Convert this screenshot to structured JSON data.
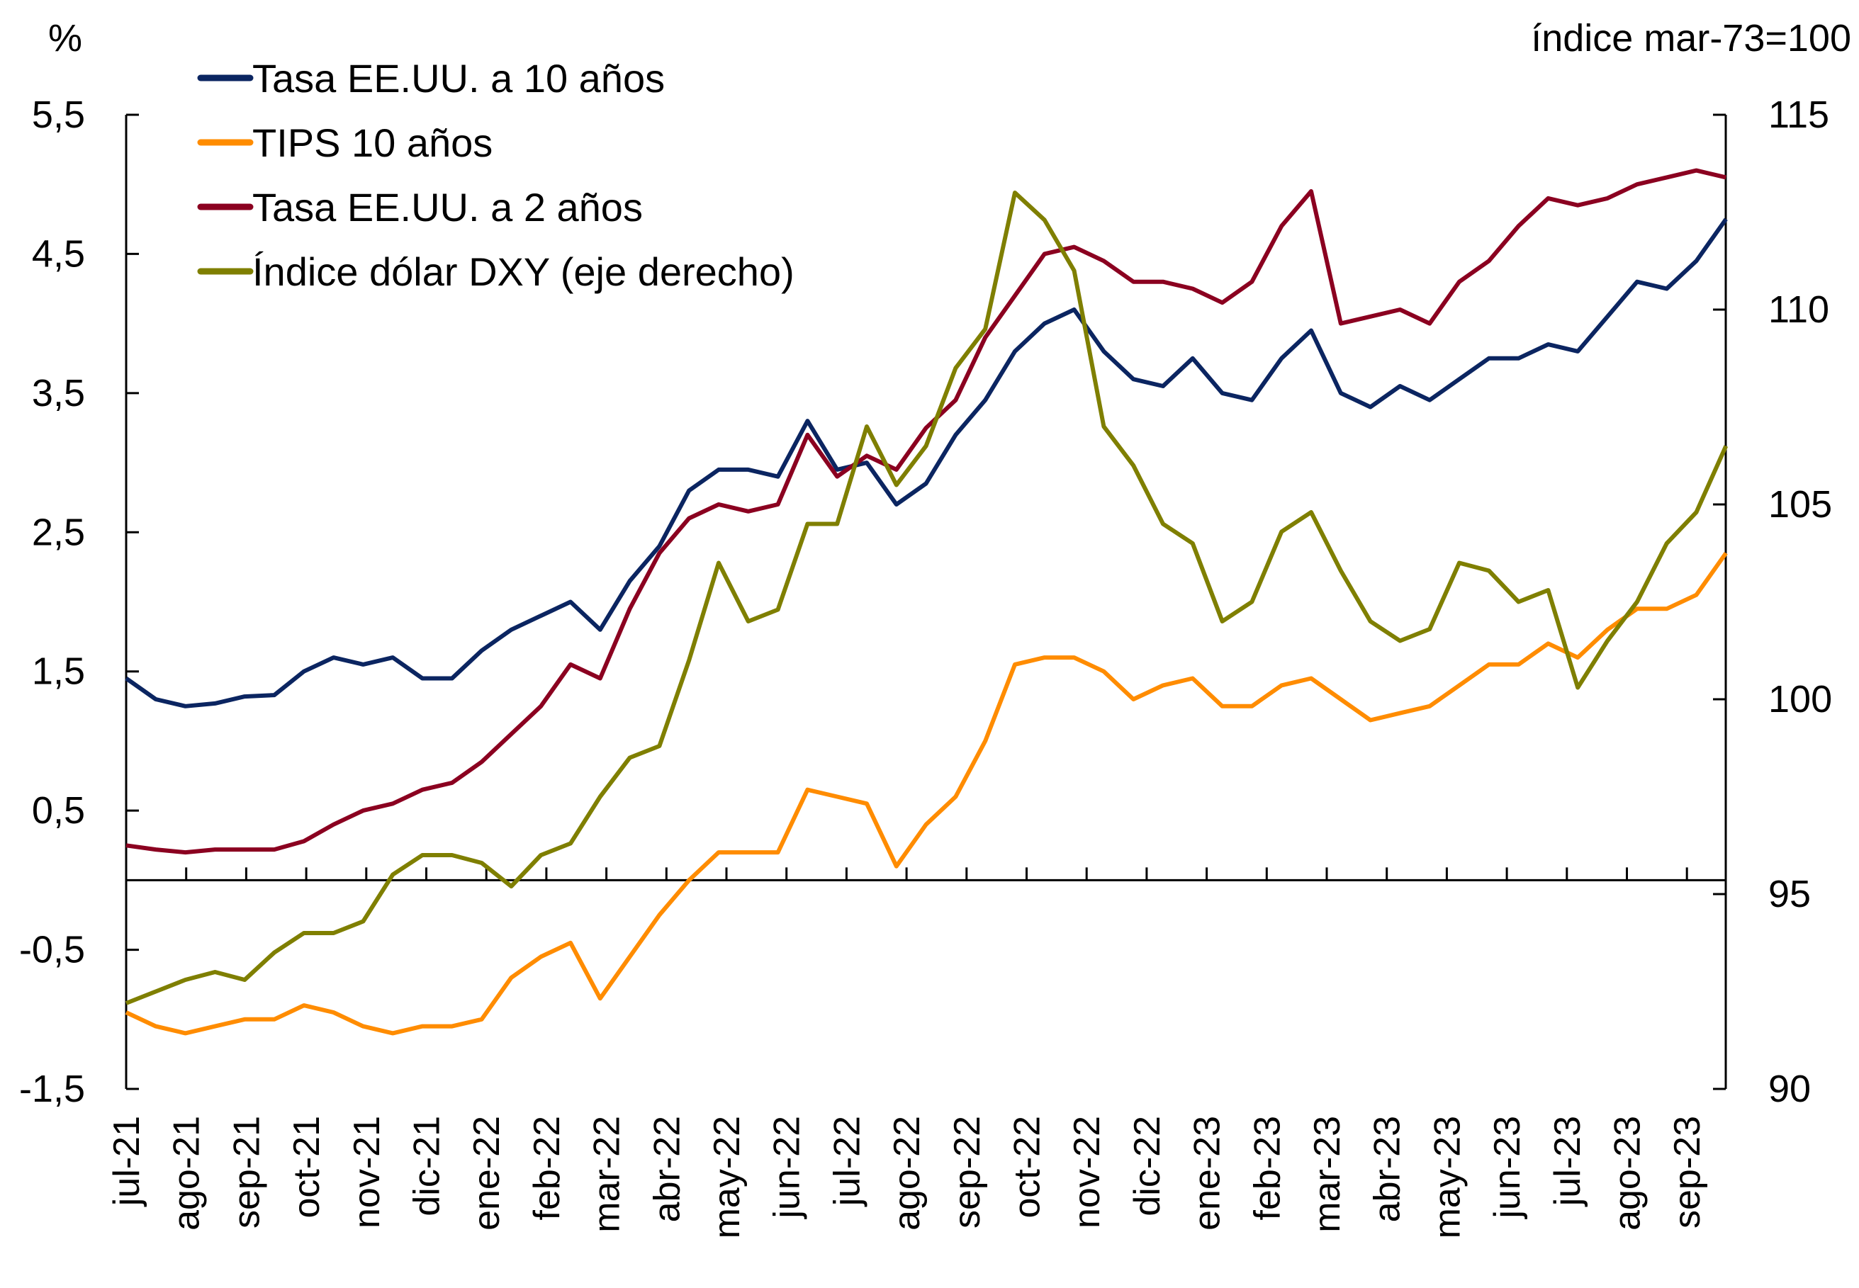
{
  "chart_data": {
    "type": "line",
    "title": "",
    "left_axis": {
      "unit_label": "%",
      "ylim": [
        -1.5,
        5.5
      ],
      "ticks": [
        -1.5,
        -0.5,
        0.5,
        1.5,
        2.5,
        3.5,
        4.5,
        5.5
      ],
      "tick_labels": [
        "-1,5",
        "-0,5",
        "0,5",
        "1,5",
        "2,5",
        "3,5",
        "4,5",
        "5,5"
      ]
    },
    "right_axis": {
      "unit_label": "índice mar-73=100",
      "ylim": [
        90,
        115
      ],
      "ticks": [
        90,
        95,
        100,
        105,
        110,
        115
      ],
      "tick_labels": [
        "90",
        "95",
        "100",
        "105",
        "110",
        "115"
      ]
    },
    "x_axis": {
      "tick_labels": [
        "jul-21",
        "ago-21",
        "sep-21",
        "oct-21",
        "nov-21",
        "dic-21",
        "ene-22",
        "feb-22",
        "mar-22",
        "abr-22",
        "may-22",
        "jun-22",
        "jul-22",
        "ago-22",
        "sep-22",
        "oct-22",
        "nov-22",
        "dic-22",
        "ene-23",
        "feb-23",
        "mar-23",
        "abr-23",
        "may-23",
        "jun-23",
        "jul-23",
        "ago-23",
        "sep-23"
      ],
      "range_months": [
        0,
        26.65
      ],
      "sampling": "semi-monthly approx"
    },
    "zero_line": true,
    "grid": false,
    "legend_position": "top-left",
    "series": [
      {
        "name": "Tasa EE.UU. a 10 años",
        "axis": "left",
        "color": "#0b2561",
        "values": [
          1.45,
          1.3,
          1.25,
          1.27,
          1.32,
          1.33,
          1.5,
          1.6,
          1.55,
          1.6,
          1.45,
          1.45,
          1.65,
          1.8,
          1.9,
          2.0,
          1.8,
          2.15,
          2.4,
          2.8,
          2.95,
          2.95,
          2.9,
          3.3,
          2.95,
          3.0,
          2.7,
          2.85,
          3.2,
          3.45,
          3.8,
          4.0,
          4.1,
          3.8,
          3.6,
          3.55,
          3.75,
          3.5,
          3.45,
          3.75,
          3.95,
          3.5,
          3.4,
          3.55,
          3.45,
          3.6,
          3.75,
          3.75,
          3.85,
          3.8,
          4.05,
          4.3,
          4.25,
          4.45,
          4.75
        ]
      },
      {
        "name": "TIPS 10 años",
        "axis": "left",
        "color": "#ff8c00",
        "values": [
          -0.95,
          -1.05,
          -1.1,
          -1.05,
          -1.0,
          -1.0,
          -0.9,
          -0.95,
          -1.05,
          -1.1,
          -1.05,
          -1.05,
          -1.0,
          -0.7,
          -0.55,
          -0.45,
          -0.85,
          -0.55,
          -0.25,
          0.0,
          0.2,
          0.2,
          0.2,
          0.65,
          0.6,
          0.55,
          0.1,
          0.4,
          0.6,
          1.0,
          1.55,
          1.6,
          1.6,
          1.5,
          1.3,
          1.4,
          1.45,
          1.25,
          1.25,
          1.4,
          1.45,
          1.3,
          1.15,
          1.2,
          1.25,
          1.4,
          1.55,
          1.55,
          1.7,
          1.6,
          1.8,
          1.95,
          1.95,
          2.05,
          2.35
        ]
      },
      {
        "name": "Tasa EE.UU. a 2 años",
        "axis": "left",
        "color": "#8b0020",
        "values": [
          0.25,
          0.22,
          0.2,
          0.22,
          0.22,
          0.22,
          0.28,
          0.4,
          0.5,
          0.55,
          0.65,
          0.7,
          0.85,
          1.05,
          1.25,
          1.55,
          1.45,
          1.95,
          2.35,
          2.6,
          2.7,
          2.65,
          2.7,
          3.2,
          2.9,
          3.05,
          2.95,
          3.25,
          3.45,
          3.9,
          4.2,
          4.5,
          4.55,
          4.45,
          4.3,
          4.3,
          4.25,
          4.15,
          4.3,
          4.7,
          4.95,
          4.0,
          4.05,
          4.1,
          4.0,
          4.3,
          4.45,
          4.7,
          4.9,
          4.85,
          4.9,
          5.0,
          5.05,
          5.1,
          5.05
        ]
      },
      {
        "name": "Índice dólar DXY (eje derecho)",
        "axis": "right",
        "color": "#7f7f00",
        "values": [
          92.2,
          92.5,
          92.8,
          93.0,
          92.8,
          93.5,
          94.0,
          94.0,
          94.3,
          95.5,
          96.0,
          96.0,
          95.8,
          95.2,
          96.0,
          96.3,
          97.5,
          98.5,
          98.8,
          101.0,
          103.5,
          102.0,
          102.3,
          104.5,
          104.5,
          107.0,
          105.5,
          106.5,
          108.5,
          109.5,
          113.0,
          112.3,
          111.0,
          107.0,
          106.0,
          104.5,
          104.0,
          102.0,
          102.5,
          104.3,
          104.8,
          103.3,
          102.0,
          101.5,
          101.8,
          103.5,
          103.3,
          102.5,
          102.8,
          100.3,
          101.5,
          102.5,
          104.0,
          104.8,
          106.5
        ]
      }
    ]
  }
}
